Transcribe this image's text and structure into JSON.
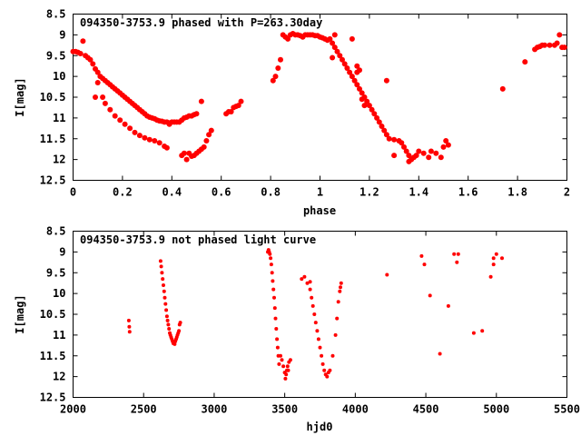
{
  "chart_data": [
    {
      "type": "scatter",
      "title": "094350-3753.9 phased with P=263.30day",
      "xlabel": "phase",
      "ylabel": "I[mag]",
      "xlim": [
        0,
        2
      ],
      "ylim": [
        8.5,
        12.5
      ],
      "y_inverted": true,
      "x_ticks": [
        0,
        0.2,
        0.4,
        0.6,
        0.8,
        1,
        1.2,
        1.4,
        1.6,
        1.8,
        2
      ],
      "y_ticks": [
        8.5,
        9,
        9.5,
        10,
        10.5,
        11,
        11.5,
        12,
        12.5
      ],
      "grid": false,
      "marker_color": "#ff0000",
      "points": [
        [
          0.0,
          9.4
        ],
        [
          0.01,
          9.4
        ],
        [
          0.02,
          9.42
        ],
        [
          0.03,
          9.45
        ],
        [
          0.04,
          9.15
        ],
        [
          0.05,
          9.5
        ],
        [
          0.06,
          9.55
        ],
        [
          0.07,
          9.6
        ],
        [
          0.08,
          9.7
        ],
        [
          0.09,
          9.82
        ],
        [
          0.1,
          9.9
        ],
        [
          0.11,
          10.0
        ],
        [
          0.12,
          10.05
        ],
        [
          0.13,
          10.1
        ],
        [
          0.14,
          10.15
        ],
        [
          0.15,
          10.2
        ],
        [
          0.16,
          10.25
        ],
        [
          0.17,
          10.3
        ],
        [
          0.18,
          10.35
        ],
        [
          0.19,
          10.4
        ],
        [
          0.2,
          10.45
        ],
        [
          0.21,
          10.5
        ],
        [
          0.22,
          10.55
        ],
        [
          0.23,
          10.6
        ],
        [
          0.24,
          10.65
        ],
        [
          0.25,
          10.7
        ],
        [
          0.26,
          10.75
        ],
        [
          0.27,
          10.8
        ],
        [
          0.28,
          10.85
        ],
        [
          0.29,
          10.9
        ],
        [
          0.3,
          10.95
        ],
        [
          0.31,
          10.98
        ],
        [
          0.32,
          11.0
        ],
        [
          0.33,
          11.02
        ],
        [
          0.34,
          11.05
        ],
        [
          0.35,
          11.07
        ],
        [
          0.36,
          11.08
        ],
        [
          0.37,
          11.1
        ],
        [
          0.38,
          11.1
        ],
        [
          0.39,
          11.12
        ],
        [
          0.4,
          11.1
        ],
        [
          0.41,
          11.1
        ],
        [
          0.42,
          11.1
        ],
        [
          0.43,
          11.1
        ],
        [
          0.44,
          11.05
        ],
        [
          0.45,
          11.0
        ],
        [
          0.46,
          10.98
        ],
        [
          0.47,
          10.95
        ],
        [
          0.48,
          10.95
        ],
        [
          0.49,
          10.92
        ],
        [
          0.5,
          10.9
        ],
        [
          0.52,
          10.6
        ],
        [
          0.09,
          10.5
        ],
        [
          0.1,
          10.15
        ],
        [
          0.12,
          10.5
        ],
        [
          0.13,
          10.65
        ],
        [
          0.15,
          10.8
        ],
        [
          0.17,
          10.95
        ],
        [
          0.19,
          11.05
        ],
        [
          0.21,
          11.15
        ],
        [
          0.23,
          11.25
        ],
        [
          0.25,
          11.35
        ],
        [
          0.27,
          11.42
        ],
        [
          0.29,
          11.48
        ],
        [
          0.31,
          11.52
        ],
        [
          0.33,
          11.55
        ],
        [
          0.35,
          11.6
        ],
        [
          0.37,
          11.68
        ],
        [
          0.38,
          11.72
        ],
        [
          0.39,
          11.15
        ],
        [
          0.44,
          11.9
        ],
        [
          0.45,
          11.85
        ],
        [
          0.46,
          12.0
        ],
        [
          0.47,
          11.85
        ],
        [
          0.48,
          11.92
        ],
        [
          0.49,
          11.9
        ],
        [
          0.5,
          11.85
        ],
        [
          0.51,
          11.8
        ],
        [
          0.52,
          11.75
        ],
        [
          0.53,
          11.7
        ],
        [
          0.54,
          11.55
        ],
        [
          0.55,
          11.4
        ],
        [
          0.56,
          11.3
        ],
        [
          0.62,
          10.9
        ],
        [
          0.63,
          10.85
        ],
        [
          0.64,
          10.85
        ],
        [
          0.65,
          10.75
        ],
        [
          0.66,
          10.72
        ],
        [
          0.67,
          10.7
        ],
        [
          0.68,
          10.6
        ],
        [
          0.81,
          10.1
        ],
        [
          0.82,
          10.0
        ],
        [
          0.83,
          9.8
        ],
        [
          0.84,
          9.6
        ],
        [
          0.85,
          9.0
        ],
        [
          0.86,
          9.05
        ],
        [
          0.87,
          9.1
        ],
        [
          0.88,
          9.0
        ],
        [
          0.89,
          8.97
        ],
        [
          0.9,
          9.0
        ],
        [
          0.91,
          9.0
        ],
        [
          0.92,
          9.02
        ],
        [
          0.93,
          9.05
        ],
        [
          0.94,
          9.0
        ],
        [
          0.95,
          9.0
        ],
        [
          0.96,
          9.0
        ],
        [
          0.97,
          9.0
        ],
        [
          0.98,
          9.02
        ],
        [
          0.99,
          9.02
        ],
        [
          1.0,
          9.05
        ],
        [
          1.01,
          9.07
        ],
        [
          1.02,
          9.1
        ],
        [
          1.03,
          9.13
        ],
        [
          1.04,
          9.1
        ],
        [
          1.05,
          9.2
        ],
        [
          1.06,
          9.3
        ],
        [
          1.07,
          9.4
        ],
        [
          1.08,
          9.5
        ],
        [
          1.09,
          9.6
        ],
        [
          1.1,
          9.7
        ],
        [
          1.11,
          9.8
        ],
        [
          1.12,
          9.9
        ],
        [
          1.13,
          10.0
        ],
        [
          1.14,
          10.1
        ],
        [
          1.15,
          10.2
        ],
        [
          1.16,
          10.3
        ],
        [
          1.17,
          10.4
        ],
        [
          1.18,
          10.5
        ],
        [
          1.19,
          10.6
        ],
        [
          1.2,
          10.7
        ],
        [
          1.21,
          10.8
        ],
        [
          1.22,
          10.9
        ],
        [
          1.23,
          11.0
        ],
        [
          1.24,
          11.1
        ],
        [
          1.25,
          11.2
        ],
        [
          1.26,
          11.3
        ],
        [
          1.27,
          11.4
        ],
        [
          1.28,
          11.5
        ],
        [
          1.3,
          11.52
        ],
        [
          1.32,
          11.55
        ],
        [
          1.33,
          11.6
        ],
        [
          1.35,
          11.8
        ],
        [
          1.36,
          11.9
        ],
        [
          1.37,
          12.0
        ],
        [
          1.38,
          11.95
        ],
        [
          1.39,
          11.9
        ],
        [
          1.4,
          11.8
        ],
        [
          1.42,
          11.85
        ],
        [
          1.44,
          11.95
        ],
        [
          1.45,
          11.8
        ],
        [
          1.47,
          11.85
        ],
        [
          1.49,
          11.95
        ],
        [
          1.5,
          11.7
        ],
        [
          1.51,
          11.55
        ],
        [
          1.52,
          11.65
        ],
        [
          1.05,
          9.55
        ],
        [
          1.06,
          9.0
        ],
        [
          1.13,
          9.1
        ],
        [
          1.15,
          9.9
        ],
        [
          1.17,
          10.55
        ],
        [
          1.18,
          10.7
        ],
        [
          1.27,
          10.1
        ],
        [
          1.3,
          11.9
        ],
        [
          1.34,
          11.7
        ],
        [
          1.36,
          12.05
        ],
        [
          1.74,
          10.3
        ],
        [
          1.83,
          9.65
        ],
        [
          1.87,
          9.35
        ],
        [
          1.88,
          9.3
        ],
        [
          1.89,
          9.28
        ],
        [
          1.9,
          9.25
        ],
        [
          1.91,
          9.25
        ],
        [
          1.93,
          9.25
        ],
        [
          1.95,
          9.25
        ],
        [
          1.96,
          9.2
        ],
        [
          1.97,
          9.0
        ],
        [
          1.98,
          9.3
        ],
        [
          1.99,
          9.3
        ],
        [
          1.15,
          9.75
        ],
        [
          1.16,
          9.85
        ]
      ]
    },
    {
      "type": "scatter",
      "title": "094350-3753.9 not phased light curve",
      "xlabel": "hjd0",
      "ylabel": "I[mag]",
      "xlim": [
        2000,
        5500
      ],
      "ylim": [
        8.5,
        12.5
      ],
      "y_inverted": true,
      "x_ticks": [
        2000,
        2500,
        3000,
        3500,
        4000,
        4500,
        5000,
        5500
      ],
      "y_ticks": [
        8.5,
        9,
        9.5,
        10,
        10.5,
        11,
        11.5,
        12,
        12.5
      ],
      "grid": false,
      "marker_color": "#ff0000",
      "points": [
        [
          2395,
          10.65
        ],
        [
          2398,
          10.8
        ],
        [
          2401,
          10.92
        ],
        [
          2620,
          9.22
        ],
        [
          2625,
          9.35
        ],
        [
          2630,
          9.5
        ],
        [
          2635,
          9.65
        ],
        [
          2640,
          9.8
        ],
        [
          2645,
          9.95
        ],
        [
          2650,
          10.1
        ],
        [
          2655,
          10.25
        ],
        [
          2660,
          10.4
        ],
        [
          2665,
          10.55
        ],
        [
          2670,
          10.65
        ],
        [
          2675,
          10.75
        ],
        [
          2680,
          10.85
        ],
        [
          2685,
          10.95
        ],
        [
          2690,
          11.0
        ],
        [
          2695,
          11.05
        ],
        [
          2700,
          11.1
        ],
        [
          2705,
          11.15
        ],
        [
          2710,
          11.2
        ],
        [
          2715,
          11.15
        ],
        [
          2720,
          11.22
        ],
        [
          2725,
          11.15
        ],
        [
          2730,
          11.1
        ],
        [
          2735,
          11.05
        ],
        [
          2740,
          11.0
        ],
        [
          2745,
          10.95
        ],
        [
          2750,
          10.9
        ],
        [
          2755,
          10.75
        ],
        [
          2760,
          10.7
        ],
        [
          3380,
          9.0
        ],
        [
          3385,
          8.95
        ],
        [
          3390,
          9.0
        ],
        [
          3395,
          9.05
        ],
        [
          3400,
          9.15
        ],
        [
          3405,
          9.3
        ],
        [
          3410,
          9.5
        ],
        [
          3415,
          9.7
        ],
        [
          3420,
          9.9
        ],
        [
          3425,
          10.1
        ],
        [
          3430,
          10.35
        ],
        [
          3435,
          10.6
        ],
        [
          3440,
          10.85
        ],
        [
          3445,
          11.1
        ],
        [
          3450,
          11.3
        ],
        [
          3455,
          11.5
        ],
        [
          3460,
          11.7
        ],
        [
          3470,
          11.5
        ],
        [
          3480,
          11.6
        ],
        [
          3490,
          11.75
        ],
        [
          3500,
          11.9
        ],
        [
          3505,
          12.05
        ],
        [
          3510,
          11.95
        ],
        [
          3515,
          11.85
        ],
        [
          3520,
          11.75
        ],
        [
          3525,
          11.85
        ],
        [
          3530,
          11.65
        ],
        [
          3540,
          11.6
        ],
        [
          3640,
          9.6
        ],
        [
          3660,
          9.75
        ],
        [
          3680,
          9.9
        ],
        [
          3690,
          10.1
        ],
        [
          3700,
          10.3
        ],
        [
          3710,
          10.5
        ],
        [
          3720,
          10.7
        ],
        [
          3730,
          10.9
        ],
        [
          3740,
          11.1
        ],
        [
          3750,
          11.3
        ],
        [
          3760,
          11.5
        ],
        [
          3770,
          11.7
        ],
        [
          3780,
          11.85
        ],
        [
          3790,
          11.95
        ],
        [
          3800,
          12.0
        ],
        [
          3810,
          11.9
        ],
        [
          3820,
          11.85
        ],
        [
          3840,
          11.5
        ],
        [
          3860,
          11.0
        ],
        [
          3870,
          10.6
        ],
        [
          3880,
          10.2
        ],
        [
          3890,
          9.95
        ],
        [
          3895,
          9.85
        ],
        [
          3900,
          9.75
        ],
        [
          3620,
          9.65
        ],
        [
          3680,
          9.72
        ],
        [
          4225,
          9.55
        ],
        [
          4470,
          9.1
        ],
        [
          4490,
          9.3
        ],
        [
          4530,
          10.05
        ],
        [
          4600,
          11.45
        ],
        [
          4660,
          10.3
        ],
        [
          4700,
          9.05
        ],
        [
          4720,
          9.25
        ],
        [
          4730,
          9.05
        ],
        [
          4840,
          10.95
        ],
        [
          4900,
          10.9
        ],
        [
          4960,
          9.6
        ],
        [
          4980,
          9.3
        ],
        [
          5000,
          9.05
        ],
        [
          5040,
          9.15
        ],
        [
          4980,
          9.15
        ]
      ]
    }
  ]
}
